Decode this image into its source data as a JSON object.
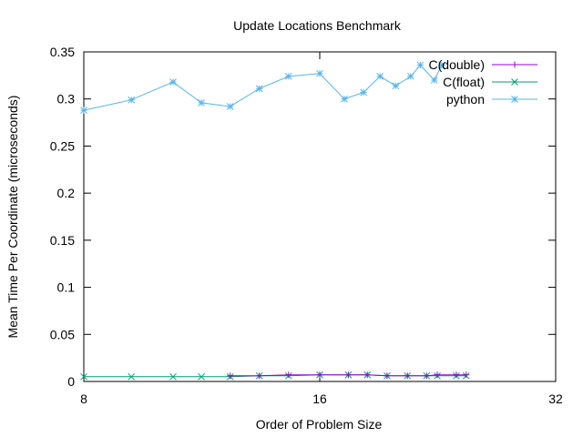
{
  "chart_data": {
    "type": "line",
    "title": "Update Locations Benchmark",
    "xlabel": "Order of Problem Size",
    "ylabel": "Mean Time Per Coordinate (microseconds)",
    "x_scale": "log2",
    "xlim": [
      8,
      32
    ],
    "ylim": [
      0,
      0.35
    ],
    "x_ticks": [
      8,
      16,
      32
    ],
    "x_tick_labels": [
      "8",
      "16",
      "32"
    ],
    "y_ticks": [
      0,
      0.05,
      0.1,
      0.15,
      0.2,
      0.25,
      0.3,
      0.35
    ],
    "y_tick_labels": [
      "0",
      "0.05",
      "0.1",
      "0.15",
      "0.2",
      "0.25",
      "0.3",
      "0.35"
    ],
    "grid": false,
    "legend_position": "top-right",
    "series": [
      {
        "name": "C(double)",
        "color": "#9400d3",
        "marker": "plus",
        "x": [
          12.3,
          13.4,
          14.6,
          16.0,
          17.4,
          18.4,
          19.5,
          20.7,
          21.9,
          22.6,
          23.9,
          24.6
        ],
        "y": [
          0.006,
          0.006,
          0.007,
          0.007,
          0.007,
          0.007,
          0.006,
          0.006,
          0.006,
          0.007,
          0.007,
          0.007
        ]
      },
      {
        "name": "C(float)",
        "color": "#009e73",
        "marker": "cross",
        "x": [
          8.0,
          9.2,
          10.4,
          11.3,
          12.3,
          13.4,
          14.6,
          16.0,
          17.4,
          18.4,
          19.5,
          20.7,
          21.9,
          22.6,
          23.9,
          24.6
        ],
        "y": [
          0.005,
          0.005,
          0.005,
          0.005,
          0.005,
          0.006,
          0.006,
          0.007,
          0.007,
          0.007,
          0.006,
          0.006,
          0.006,
          0.006,
          0.006,
          0.006
        ]
      },
      {
        "name": "python",
        "color": "#56b4e9",
        "marker": "star",
        "x": [
          8.0,
          9.2,
          10.4,
          11.3,
          12.3,
          13.4,
          14.6,
          16.0,
          17.2,
          18.2,
          19.1,
          20.0,
          20.9,
          21.5,
          22.4,
          22.9
        ],
        "y": [
          0.288,
          0.299,
          0.318,
          0.296,
          0.292,
          0.311,
          0.324,
          0.327,
          0.3,
          0.307,
          0.324,
          0.314,
          0.324,
          0.336,
          0.32,
          0.336
        ]
      }
    ]
  }
}
